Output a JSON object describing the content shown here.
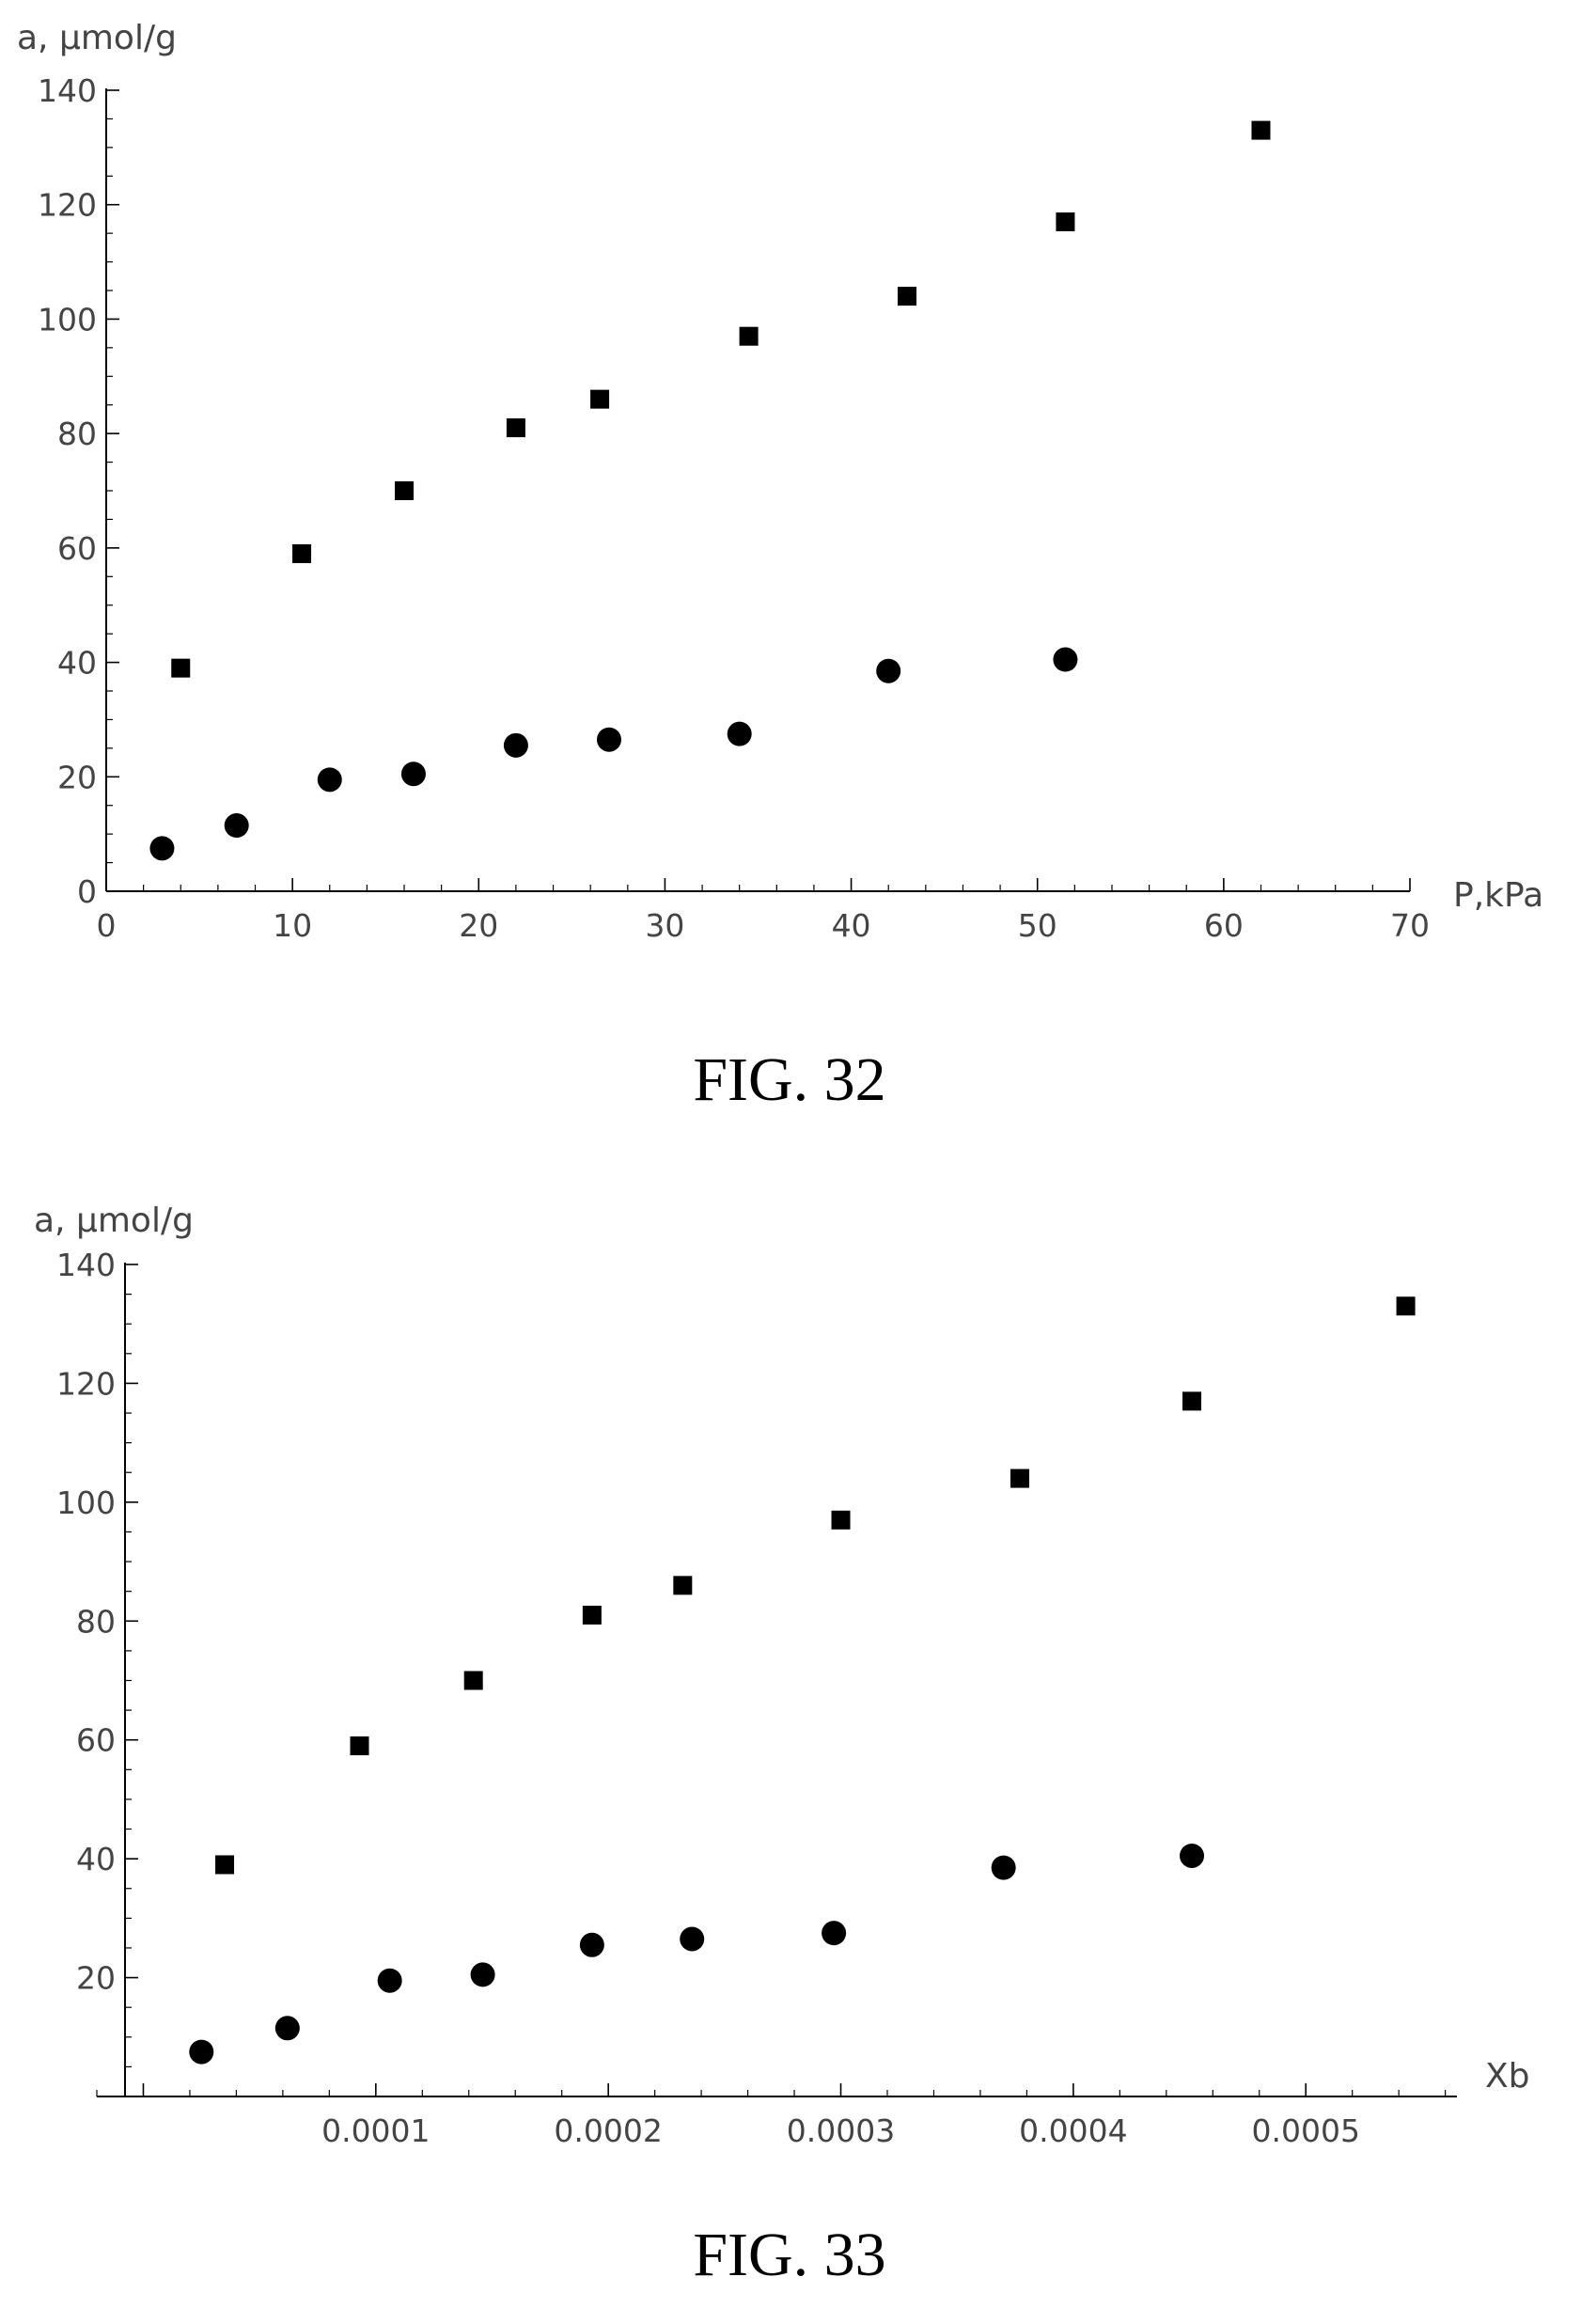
{
  "figures": [
    {
      "caption": "FIG. 32",
      "ylabel": "a, μmol/g",
      "xlabel": "P,kPa"
    },
    {
      "caption": "FIG. 33",
      "ylabel": "a, μmol/g",
      "xlabel": "Xb"
    }
  ],
  "chart_data": [
    {
      "type": "scatter",
      "title": "FIG. 32",
      "xlabel": "P,kPa",
      "ylabel": "a, μmol/g",
      "xlim": [
        0,
        70
      ],
      "ylim": [
        0,
        140
      ],
      "xticks": [
        "0",
        "10",
        "20",
        "30",
        "40",
        "50",
        "60",
        "70"
      ],
      "yticks": [
        "0",
        "20",
        "40",
        "60",
        "80",
        "100",
        "120",
        "140"
      ],
      "grid": false,
      "series": [
        {
          "marker": "square",
          "points": [
            [
              4,
              39
            ],
            [
              10.5,
              59
            ],
            [
              16,
              70
            ],
            [
              22,
              81
            ],
            [
              26.5,
              86
            ],
            [
              34.5,
              97
            ],
            [
              43,
              104
            ],
            [
              51.5,
              117
            ],
            [
              62,
              133
            ]
          ]
        },
        {
          "marker": "circle",
          "points": [
            [
              3,
              7.5
            ],
            [
              7,
              11.5
            ],
            [
              12,
              19.5
            ],
            [
              16.5,
              20.5
            ],
            [
              22,
              25.5
            ],
            [
              27,
              26.5
            ],
            [
              34,
              27.5
            ],
            [
              42,
              38.5
            ],
            [
              51.5,
              40.5
            ]
          ]
        }
      ]
    },
    {
      "type": "scatter",
      "title": "FIG. 33",
      "xlabel": "Xb",
      "ylabel": "a, μmol/g",
      "xlim": [
        -2e-05,
        0.000565
      ],
      "ylim": [
        0,
        140
      ],
      "xticks": [
        "0.0001",
        "0.0002",
        "0.0003",
        "0.0004",
        "0.0005"
      ],
      "yticks": [
        "20",
        "40",
        "60",
        "80",
        "100",
        "120",
        "140"
      ],
      "grid": false,
      "series": [
        {
          "marker": "square",
          "points": [
            [
              3.5e-05,
              39
            ],
            [
              9.3e-05,
              59
            ],
            [
              0.000142,
              70
            ],
            [
              0.000193,
              81
            ],
            [
              0.000232,
              86
            ],
            [
              0.0003,
              97
            ],
            [
              0.000377,
              104
            ],
            [
              0.000451,
              117
            ],
            [
              0.000543,
              133
            ]
          ]
        },
        {
          "marker": "circle",
          "points": [
            [
              2.5e-05,
              7.5
            ],
            [
              6.2e-05,
              11.5
            ],
            [
              0.000106,
              19.5
            ],
            [
              0.000146,
              20.5
            ],
            [
              0.000193,
              25.5
            ],
            [
              0.000236,
              26.5
            ],
            [
              0.000297,
              27.5
            ],
            [
              0.00037,
              38.5
            ],
            [
              0.000451,
              40.5
            ]
          ]
        }
      ]
    }
  ]
}
